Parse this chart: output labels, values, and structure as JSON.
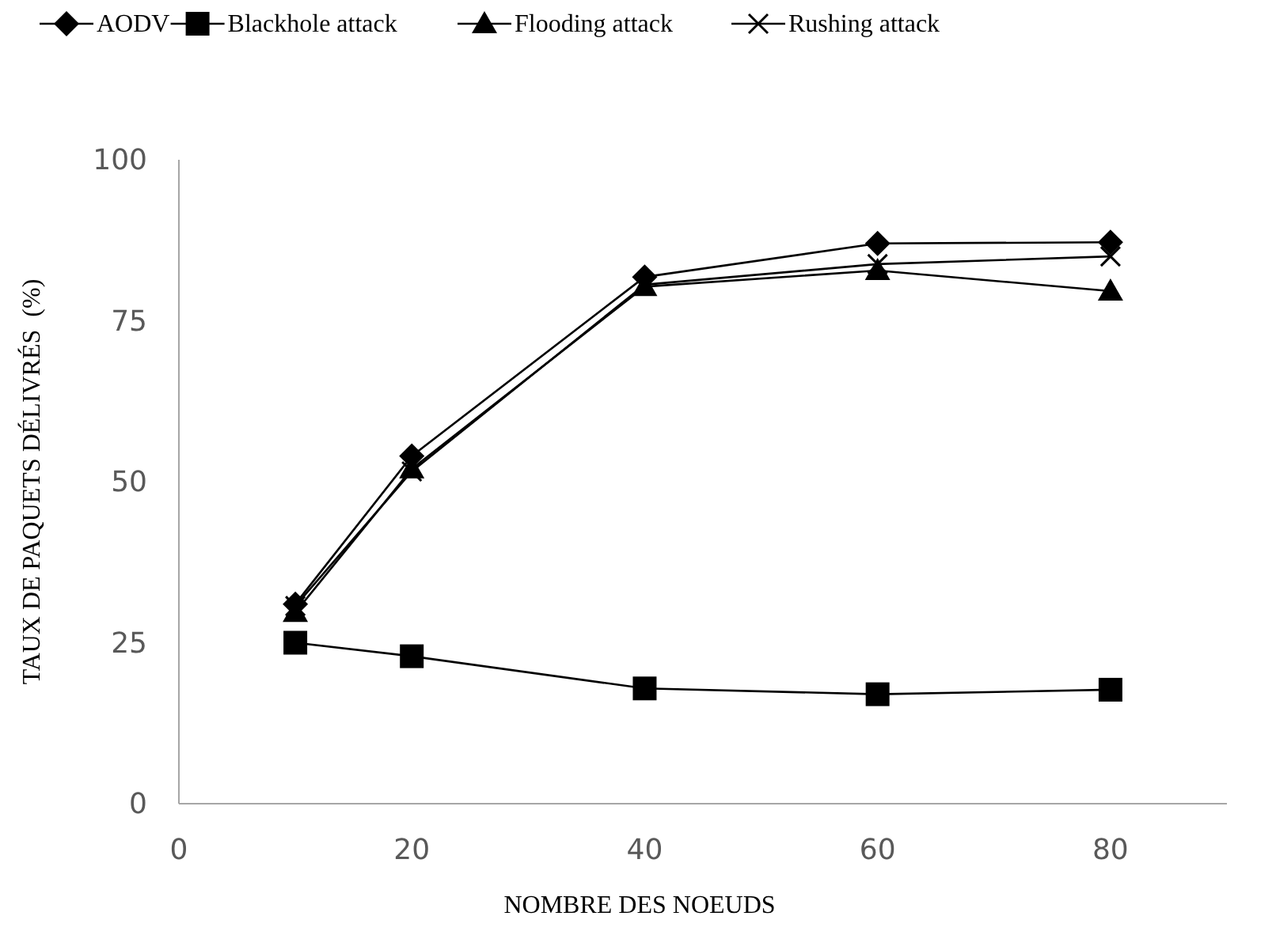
{
  "chart_data": {
    "type": "line",
    "xlabel": "NOMBRE DES NOEUDS",
    "ylabel": "TAUX DE PAQUETS DÉLIVRÉS  (%)",
    "x": [
      10,
      20,
      40,
      60,
      80
    ],
    "series": [
      {
        "name": "AODV",
        "color": "#000000",
        "marker": "diamond",
        "values": [
          31,
          54,
          81.8,
          87,
          87.2
        ]
      },
      {
        "name": "Blackhole attack",
        "color": "#000000",
        "marker": "square",
        "values": [
          25,
          22.9,
          17.9,
          17,
          17.7
        ]
      },
      {
        "name": "Flooding attack",
        "color": "#000000",
        "marker": "triangle",
        "values": [
          29.7,
          52,
          80.3,
          82.8,
          79.6
        ]
      },
      {
        "name": "Rushing attack",
        "color": "#000000",
        "marker": "cross",
        "values": [
          30.7,
          51.6,
          80.6,
          83.8,
          85
        ]
      }
    ],
    "xlim": [
      0,
      90
    ],
    "xticks": [
      0,
      20,
      40,
      60,
      80
    ],
    "ylim": [
      0,
      100
    ],
    "yticks": [
      0,
      25,
      50,
      75,
      100
    ],
    "grid": false,
    "legend": "top"
  }
}
